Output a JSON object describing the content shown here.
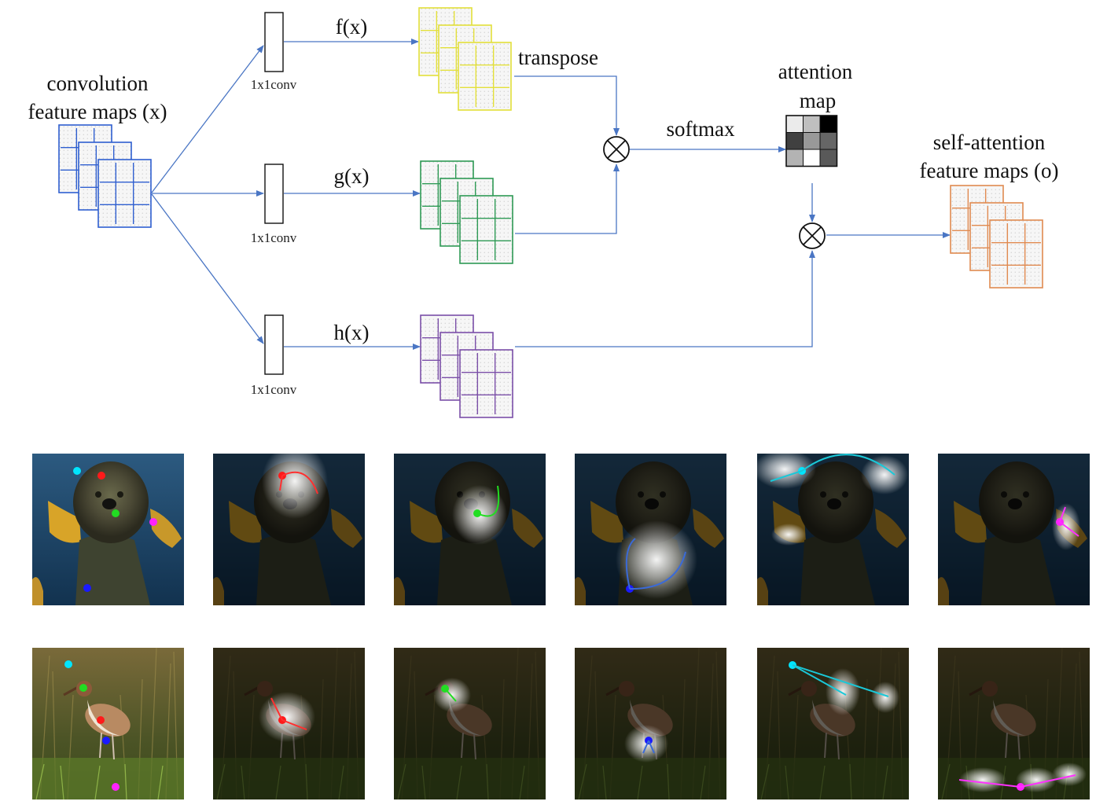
{
  "labels": {
    "input_title_line1": "convolution",
    "input_title_line2": "feature maps (x)",
    "f_label": "f(x)",
    "g_label": "g(x)",
    "h_label": "h(x)",
    "conv_label": "1x1conv",
    "transpose_label": "transpose",
    "softmax_label": "softmax",
    "attention_line1": "attention",
    "attention_line2": "map",
    "output_line1": "self-attention",
    "output_line2": "feature maps (o)"
  },
  "colors": {
    "input_maps": "#2f5fd0",
    "f_maps": "#e3e03a",
    "g_maps": "#2e9a55",
    "h_maps": "#7b4fa8",
    "output_maps": "#e08a50",
    "arrows": "#4a76c4"
  },
  "attention_map_cells": [
    [
      0.92,
      0.75,
      0.0
    ],
    [
      0.25,
      0.6,
      0.4
    ],
    [
      0.7,
      1.0,
      0.35
    ]
  ],
  "visualization": {
    "rows": [
      {
        "subject": "dog",
        "query_colors": [
          "#00e5ff",
          "#ff1a1a",
          "#22dd22",
          "#ff22ff",
          "#1a1aff"
        ]
      },
      {
        "subject": "bird",
        "query_colors": [
          "#00e5ff",
          "#22dd22",
          "#ff1a1a",
          "#1a1aff",
          "#ff22ff"
        ]
      }
    ]
  }
}
